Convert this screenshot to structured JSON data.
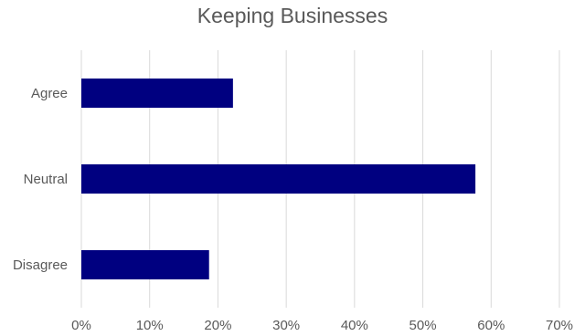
{
  "chart_data": {
    "type": "bar",
    "orientation": "horizontal",
    "title": "Keeping Businesses",
    "categories": [
      "Agree",
      "Neutral",
      "Disagree"
    ],
    "values": [
      0.222,
      0.577,
      0.187
    ],
    "xlim": [
      0,
      0.7
    ],
    "x_ticks": [
      0,
      0.1,
      0.2,
      0.3,
      0.4,
      0.5,
      0.6,
      0.7
    ],
    "x_tick_labels": [
      "0%",
      "10%",
      "20%",
      "30%",
      "40%",
      "50%",
      "60%",
      "70%"
    ],
    "xlabel": "",
    "ylabel": "",
    "grid": "vertical",
    "legend": "none",
    "bar_color": "#000080",
    "grid_color": "#d9d9d9",
    "text_color": "#595959"
  }
}
